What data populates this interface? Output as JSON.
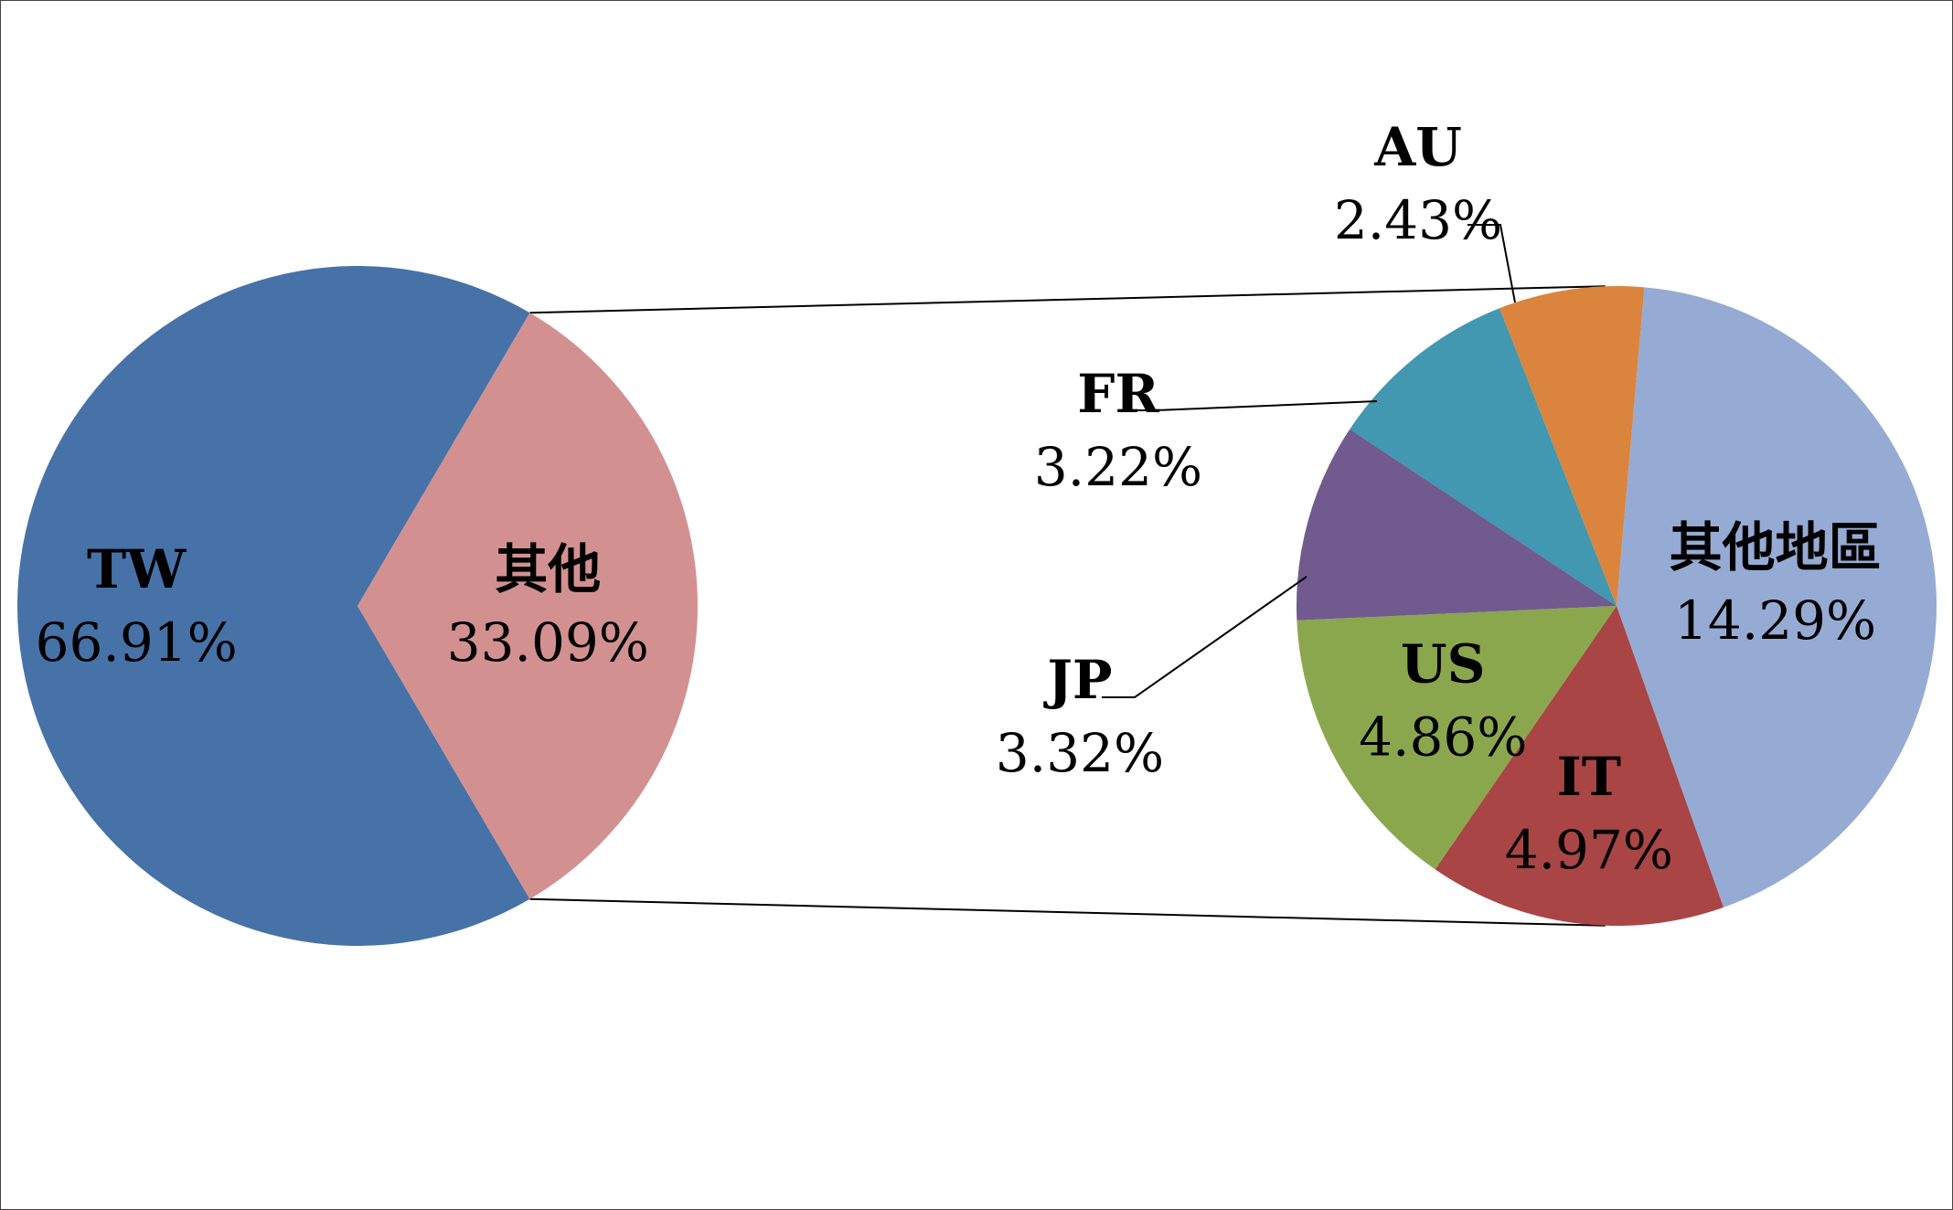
{
  "chart_data": {
    "type": "pie",
    "variant": "pie-of-pie",
    "title": "",
    "legend": "none",
    "primary": {
      "slices": [
        {
          "label": "TW",
          "value": 66.91,
          "display": "66.91%",
          "color": "#4672A8"
        },
        {
          "label": "其他",
          "value": 33.09,
          "display": "33.09%",
          "color": "#D29190"
        }
      ]
    },
    "secondary": {
      "parent": "其他",
      "slices": [
        {
          "label": "其他地區",
          "value": 14.29,
          "display": "14.29%",
          "color": "#96ABD3"
        },
        {
          "label": "IT",
          "value": 4.97,
          "display": "4.97%",
          "color": "#A94544"
        },
        {
          "label": "US",
          "value": 4.86,
          "display": "4.86%",
          "color": "#8AA74E"
        },
        {
          "label": "JP",
          "value": 3.32,
          "display": "3.32%",
          "color": "#715A8E"
        },
        {
          "label": "FR",
          "value": 3.22,
          "display": "3.22%",
          "color": "#4198B0"
        },
        {
          "label": "AU",
          "value": 2.43,
          "display": "2.43%",
          "color": "#DB843D"
        }
      ]
    }
  }
}
